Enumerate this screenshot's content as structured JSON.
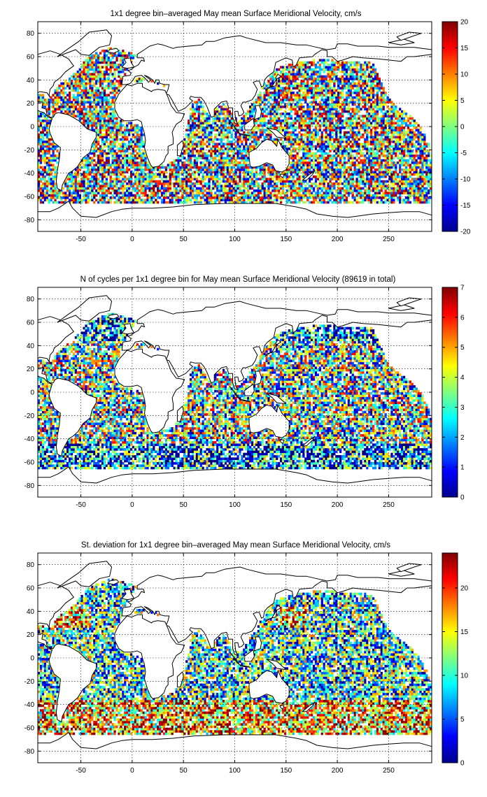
{
  "chart_data": [
    {
      "type": "heatmap",
      "title": "1x1 degree bin–averaged May mean Surface Meridional Velocity, cm/s",
      "xlabel": "",
      "ylabel": "",
      "xlim": [
        -92,
        292
      ],
      "ylim": [
        -90,
        90
      ],
      "xticks": [
        -50,
        0,
        50,
        100,
        150,
        200,
        250
      ],
      "yticks": [
        -80,
        -60,
        -40,
        -20,
        0,
        20,
        40,
        60,
        80
      ],
      "grid": true,
      "colorbar": {
        "min": -20,
        "max": 20,
        "ticks": [
          -20,
          -15,
          -10,
          -5,
          0,
          5,
          10,
          15,
          20
        ],
        "colormap": "jet",
        "placement": "right"
      }
    },
    {
      "type": "heatmap",
      "title": "N of cycles per 1x1 degree bin for May mean Surface Meridional Velocity (89619 in total)",
      "xlabel": "",
      "ylabel": "",
      "xlim": [
        -92,
        292
      ],
      "ylim": [
        -90,
        90
      ],
      "xticks": [
        -50,
        0,
        50,
        100,
        150,
        200,
        250
      ],
      "yticks": [
        -80,
        -60,
        -40,
        -20,
        0,
        20,
        40,
        60,
        80
      ],
      "grid": true,
      "total_cycles": 89619,
      "colorbar": {
        "min": 0,
        "max": 7,
        "ticks": [
          0,
          1,
          2,
          3,
          4,
          5,
          6,
          7
        ],
        "colormap": "jet",
        "placement": "right"
      }
    },
    {
      "type": "heatmap",
      "title": "St. deviation for 1x1 degree bin–averaged May mean Surface Meridional Velocity, cm/s",
      "xlabel": "",
      "ylabel": "",
      "xlim": [
        -92,
        292
      ],
      "ylim": [
        -90,
        90
      ],
      "xticks": [
        -50,
        0,
        50,
        100,
        150,
        200,
        250
      ],
      "yticks": [
        -80,
        -60,
        -40,
        -20,
        0,
        20,
        40,
        60,
        80
      ],
      "grid": true,
      "colorbar": {
        "min": 0,
        "max": 24,
        "ticks": [
          0,
          5,
          10,
          15,
          20
        ],
        "colormap": "jet",
        "placement": "right"
      }
    }
  ]
}
